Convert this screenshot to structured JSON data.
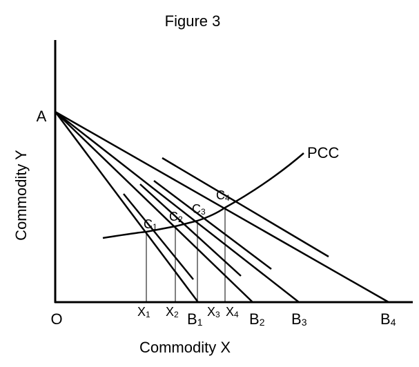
{
  "title": "Figure 3",
  "x_axis_label": "Commodity X",
  "y_axis_label": "Commodity Y",
  "origin_label": "O",
  "intercept_label": "A",
  "curve_label": "PCC",
  "budget_intercepts": [
    {
      "base": "B",
      "sub": "1"
    },
    {
      "base": "B",
      "sub": "2"
    },
    {
      "base": "B",
      "sub": "3"
    },
    {
      "base": "B",
      "sub": "4"
    }
  ],
  "equilibrium_points": [
    {
      "base": "C",
      "sub": "1"
    },
    {
      "base": "C",
      "sub": "2"
    },
    {
      "base": "C",
      "sub": "3"
    },
    {
      "base": "C",
      "sub": "4"
    }
  ],
  "quantity_labels": [
    {
      "base": "X",
      "sub": "1"
    },
    {
      "base": "X",
      "sub": "2"
    },
    {
      "base": "X",
      "sub": "3"
    },
    {
      "base": "X",
      "sub": "4"
    }
  ],
  "colors": {
    "line": "#000000",
    "background": "#ffffff"
  }
}
